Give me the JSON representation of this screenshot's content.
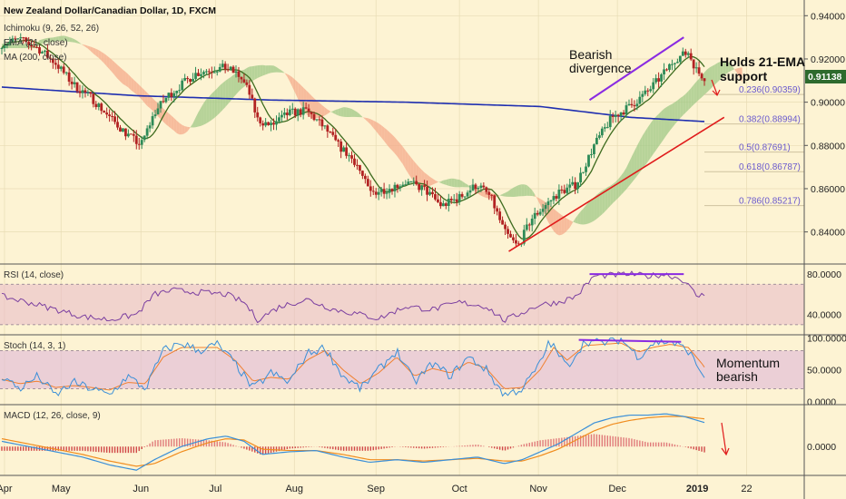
{
  "chart_data": {
    "type": "candlestick-with-indicators",
    "title": "New Zealand Dollar/Canadian Dollar, 1D, FXCM",
    "indicators": [
      "Ichimoku (9, 26, 52, 26)",
      "EMA (21, close)",
      "MA (200, close)"
    ],
    "last_price": "0.91138",
    "colors": {
      "up": "#2e8b57",
      "down": "#b22222",
      "ema": "#3d6b1e",
      "ma200": "#1f2fb0",
      "cloud_bull": "#9fc886",
      "cloud_bear": "#f4a98a",
      "trend": "#e01b1b",
      "divergence": "#8a2be2",
      "fib": "#6a5acd",
      "price_tag": "#2e6b2e"
    },
    "x_labels": [
      "Apr",
      "May",
      "Jun",
      "Jul",
      "Aug",
      "Sep",
      "Oct",
      "Nov",
      "Dec",
      "2019",
      "22"
    ],
    "x_label_days": [
      3,
      66,
      155,
      238,
      326,
      417,
      510,
      598,
      686,
      775,
      830
    ],
    "main_pane": {
      "ylim": [
        0.826,
        0.946
      ],
      "y_ticks": [
        "0.94000",
        "0.92000",
        "0.90000",
        "0.88000",
        "0.86000",
        "0.84000"
      ],
      "y_tick_values": [
        0.94,
        0.92,
        0.9,
        0.88,
        0.86,
        0.84
      ],
      "close_anchors": [
        [
          0,
          0.927
        ],
        [
          20,
          0.929
        ],
        [
          40,
          0.925
        ],
        [
          60,
          0.918
        ],
        [
          80,
          0.908
        ],
        [
          100,
          0.902
        ],
        [
          120,
          0.893
        ],
        [
          140,
          0.885
        ],
        [
          155,
          0.88
        ],
        [
          170,
          0.895
        ],
        [
          185,
          0.903
        ],
        [
          200,
          0.908
        ],
        [
          215,
          0.913
        ],
        [
          230,
          0.915
        ],
        [
          250,
          0.916
        ],
        [
          265,
          0.912
        ],
        [
          275,
          0.905
        ],
        [
          285,
          0.892
        ],
        [
          300,
          0.889
        ],
        [
          320,
          0.895
        ],
        [
          340,
          0.896
        ],
        [
          360,
          0.888
        ],
        [
          375,
          0.88
        ],
        [
          395,
          0.872
        ],
        [
          410,
          0.858
        ],
        [
          430,
          0.86
        ],
        [
          450,
          0.863
        ],
        [
          470,
          0.86
        ],
        [
          490,
          0.852
        ],
        [
          510,
          0.856
        ],
        [
          530,
          0.862
        ],
        [
          545,
          0.856
        ],
        [
          560,
          0.84
        ],
        [
          575,
          0.833
        ],
        [
          590,
          0.846
        ],
        [
          605,
          0.852
        ],
        [
          620,
          0.858
        ],
        [
          640,
          0.862
        ],
        [
          660,
          0.88
        ],
        [
          680,
          0.893
        ],
        [
          700,
          0.898
        ],
        [
          720,
          0.905
        ],
        [
          735,
          0.912
        ],
        [
          750,
          0.92
        ],
        [
          765,
          0.923
        ],
        [
          775,
          0.914
        ],
        [
          785,
          0.911
        ]
      ],
      "ma200_anchors": [
        [
          0,
          0.907
        ],
        [
          150,
          0.903
        ],
        [
          300,
          0.901
        ],
        [
          450,
          0.9
        ],
        [
          600,
          0.898
        ],
        [
          700,
          0.893
        ],
        [
          785,
          0.891
        ]
      ],
      "fib_levels": [
        {
          "label": "0.236(0.90359)",
          "value": 0.90359
        },
        {
          "label": "0.382(0.88994)",
          "value": 0.88994
        },
        {
          "label": "0.5(0.87691)",
          "value": 0.87691
        },
        {
          "label": "0.618(0.86787)",
          "value": 0.86787
        },
        {
          "label": "0.786(0.85217)",
          "value": 0.85217
        }
      ],
      "trendline": [
        [
          565,
          0.831
        ],
        [
          805,
          0.893
        ]
      ],
      "divergence_line": [
        [
          655,
          0.901
        ],
        [
          760,
          0.93
        ]
      ],
      "annotations": [
        "Bearish",
        "divergence",
        "Holds 21-EMA",
        "support"
      ]
    },
    "rsi_pane": {
      "label": "RSI (14, close)",
      "ylim": [
        20,
        90
      ],
      "y_ticks": [
        "80.0000",
        "40.0000"
      ],
      "y_tick_values": [
        80,
        40
      ],
      "bands": [
        30,
        70
      ],
      "anchors": [
        [
          0,
          58
        ],
        [
          30,
          52
        ],
        [
          60,
          45
        ],
        [
          90,
          38
        ],
        [
          120,
          35
        ],
        [
          150,
          40
        ],
        [
          170,
          60
        ],
        [
          190,
          64
        ],
        [
          220,
          62
        ],
        [
          250,
          60
        ],
        [
          270,
          52
        ],
        [
          285,
          35
        ],
        [
          310,
          48
        ],
        [
          340,
          55
        ],
        [
          370,
          45
        ],
        [
          400,
          40
        ],
        [
          420,
          36
        ],
        [
          450,
          48
        ],
        [
          480,
          45
        ],
        [
          510,
          52
        ],
        [
          540,
          48
        ],
        [
          560,
          34
        ],
        [
          580,
          42
        ],
        [
          600,
          50
        ],
        [
          620,
          52
        ],
        [
          640,
          58
        ],
        [
          660,
          78
        ],
        [
          680,
          79
        ],
        [
          700,
          80
        ],
        [
          720,
          78
        ],
        [
          740,
          80
        ],
        [
          760,
          74
        ],
        [
          775,
          58
        ],
        [
          785,
          60
        ]
      ],
      "divergence_line": [
        [
          655,
          80
        ],
        [
          760,
          80
        ]
      ]
    },
    "stoch_pane": {
      "label": "Stoch (14, 3, 1)",
      "ylim": [
        -5,
        105
      ],
      "y_ticks": [
        "100.0000",
        "50.0000",
        "0.0000"
      ],
      "y_tick_values": [
        100,
        50,
        0
      ],
      "bands": [
        20,
        80
      ],
      "k_anchors": [
        [
          0,
          40
        ],
        [
          20,
          20
        ],
        [
          40,
          40
        ],
        [
          60,
          10
        ],
        [
          80,
          30
        ],
        [
          100,
          20
        ],
        [
          120,
          10
        ],
        [
          140,
          40
        ],
        [
          160,
          20
        ],
        [
          180,
          80
        ],
        [
          200,
          92
        ],
        [
          220,
          80
        ],
        [
          240,
          90
        ],
        [
          260,
          60
        ],
        [
          280,
          20
        ],
        [
          300,
          45
        ],
        [
          320,
          30
        ],
        [
          340,
          75
        ],
        [
          360,
          85
        ],
        [
          380,
          40
        ],
        [
          400,
          20
        ],
        [
          420,
          50
        ],
        [
          440,
          80
        ],
        [
          460,
          30
        ],
        [
          480,
          60
        ],
        [
          500,
          40
        ],
        [
          520,
          70
        ],
        [
          540,
          50
        ],
        [
          560,
          10
        ],
        [
          580,
          20
        ],
        [
          600,
          60
        ],
        [
          610,
          95
        ],
        [
          630,
          55
        ],
        [
          650,
          95
        ],
        [
          670,
          92
        ],
        [
          690,
          98
        ],
        [
          710,
          70
        ],
        [
          725,
          92
        ],
        [
          745,
          95
        ],
        [
          765,
          80
        ],
        [
          780,
          45
        ],
        [
          785,
          40
        ]
      ],
      "d_anchors": [
        [
          0,
          35
        ],
        [
          20,
          28
        ],
        [
          40,
          32
        ],
        [
          60,
          22
        ],
        [
          80,
          25
        ],
        [
          100,
          22
        ],
        [
          120,
          18
        ],
        [
          140,
          30
        ],
        [
          160,
          28
        ],
        [
          180,
          70
        ],
        [
          200,
          85
        ],
        [
          220,
          85
        ],
        [
          240,
          85
        ],
        [
          260,
          65
        ],
        [
          280,
          32
        ],
        [
          300,
          38
        ],
        [
          320,
          35
        ],
        [
          340,
          65
        ],
        [
          360,
          80
        ],
        [
          380,
          50
        ],
        [
          400,
          28
        ],
        [
          420,
          45
        ],
        [
          440,
          70
        ],
        [
          460,
          40
        ],
        [
          480,
          52
        ],
        [
          500,
          45
        ],
        [
          520,
          62
        ],
        [
          540,
          52
        ],
        [
          560,
          20
        ],
        [
          580,
          22
        ],
        [
          600,
          50
        ],
        [
          615,
          85
        ],
        [
          630,
          65
        ],
        [
          650,
          88
        ],
        [
          670,
          90
        ],
        [
          690,
          92
        ],
        [
          710,
          78
        ],
        [
          725,
          85
        ],
        [
          745,
          90
        ],
        [
          765,
          85
        ],
        [
          780,
          60
        ],
        [
          785,
          50
        ]
      ],
      "divergence_line": [
        [
          643,
          97
        ],
        [
          757,
          94
        ]
      ],
      "annotations": [
        "Momentum",
        "bearish"
      ]
    },
    "macd_pane": {
      "label": "MACD (12, 26, close, 9)",
      "ylim": [
        -0.022,
        0.032
      ],
      "y_ticks": [
        "0.0000"
      ],
      "y_tick_values": [
        0
      ],
      "macd_anchors": [
        [
          0,
          0.004
        ],
        [
          30,
          0.0
        ],
        [
          60,
          -0.004
        ],
        [
          90,
          -0.008
        ],
        [
          120,
          -0.014
        ],
        [
          150,
          -0.018
        ],
        [
          170,
          -0.01
        ],
        [
          200,
          0.0
        ],
        [
          230,
          0.006
        ],
        [
          250,
          0.008
        ],
        [
          270,
          0.004
        ],
        [
          290,
          -0.006
        ],
        [
          320,
          -0.004
        ],
        [
          350,
          -0.003
        ],
        [
          380,
          -0.008
        ],
        [
          410,
          -0.012
        ],
        [
          440,
          -0.01
        ],
        [
          470,
          -0.012
        ],
        [
          500,
          -0.01
        ],
        [
          530,
          -0.008
        ],
        [
          560,
          -0.013
        ],
        [
          580,
          -0.01
        ],
        [
          600,
          -0.004
        ],
        [
          620,
          0.002
        ],
        [
          640,
          0.01
        ],
        [
          660,
          0.018
        ],
        [
          680,
          0.022
        ],
        [
          700,
          0.024
        ],
        [
          720,
          0.024
        ],
        [
          740,
          0.025
        ],
        [
          760,
          0.023
        ],
        [
          785,
          0.018
        ]
      ],
      "signal_anchors": [
        [
          0,
          0.006
        ],
        [
          30,
          0.002
        ],
        [
          60,
          -0.002
        ],
        [
          90,
          -0.006
        ],
        [
          120,
          -0.011
        ],
        [
          150,
          -0.015
        ],
        [
          170,
          -0.013
        ],
        [
          200,
          -0.004
        ],
        [
          230,
          0.003
        ],
        [
          250,
          0.006
        ],
        [
          270,
          0.005
        ],
        [
          290,
          -0.002
        ],
        [
          320,
          -0.003
        ],
        [
          350,
          -0.003
        ],
        [
          380,
          -0.006
        ],
        [
          410,
          -0.01
        ],
        [
          440,
          -0.01
        ],
        [
          470,
          -0.011
        ],
        [
          500,
          -0.01
        ],
        [
          530,
          -0.009
        ],
        [
          560,
          -0.011
        ],
        [
          580,
          -0.011
        ],
        [
          600,
          -0.007
        ],
        [
          620,
          -0.002
        ],
        [
          640,
          0.005
        ],
        [
          660,
          0.012
        ],
        [
          680,
          0.017
        ],
        [
          700,
          0.02
        ],
        [
          720,
          0.022
        ],
        [
          740,
          0.023
        ],
        [
          760,
          0.023
        ],
        [
          785,
          0.021
        ]
      ]
    }
  }
}
